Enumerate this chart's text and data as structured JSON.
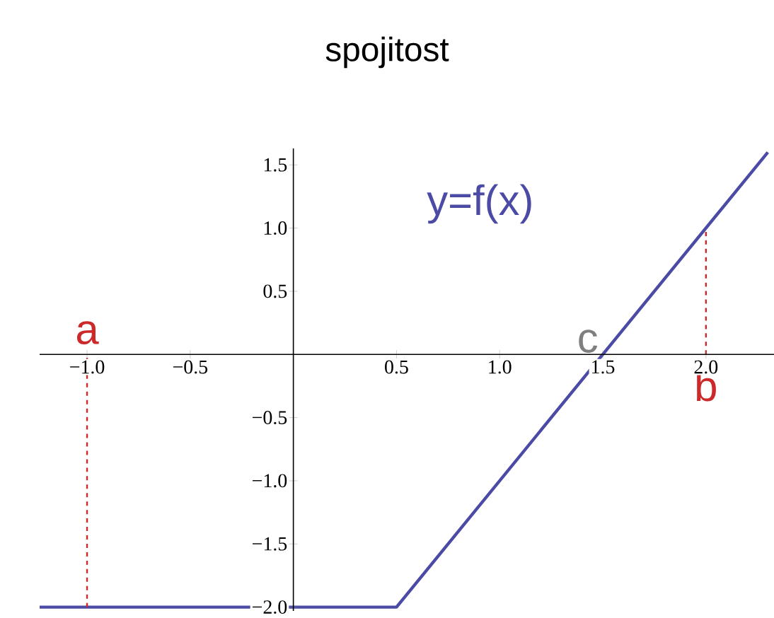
{
  "chart_data": {
    "type": "line",
    "title": "spojitost",
    "xlim": [
      -1.23,
      2.33
    ],
    "ylim": [
      -2.03,
      1.63
    ],
    "xticks": [
      {
        "value": -1,
        "label": "−1.0"
      },
      {
        "value": -0.5,
        "label": "−0.5"
      },
      {
        "value": 0.5,
        "label": "0.5"
      },
      {
        "value": 1,
        "label": "1.0"
      },
      {
        "value": 1.5,
        "label": "1.5"
      },
      {
        "value": 2,
        "label": "2.0"
      }
    ],
    "yticks": [
      {
        "value": 1.5,
        "label": "1.5"
      },
      {
        "value": 1,
        "label": "1.0"
      },
      {
        "value": 0.5,
        "label": "0.5"
      },
      {
        "value": -0.5,
        "label": "−0.5"
      },
      {
        "value": -1,
        "label": "−1.0"
      },
      {
        "value": -1.5,
        "label": "−1.5"
      },
      {
        "value": -2,
        "label": "−2.0"
      }
    ],
    "series": [
      {
        "name": "y=f(x)",
        "color": "#4b4ba6",
        "x": [
          -1.23,
          0.5,
          2.3
        ],
        "values": [
          -2,
          -2,
          1.6
        ]
      },
      {
        "color": "#cc2a2a",
        "line_style": "dashed",
        "x": [
          -1,
          -1
        ],
        "values": [
          -2,
          0
        ]
      },
      {
        "color": "#cc2a2a",
        "line_style": "dashed",
        "x": [
          2,
          2
        ],
        "values": [
          0,
          1
        ]
      }
    ],
    "annotations": [
      {
        "text": "a",
        "x": -1,
        "y": 0
      },
      {
        "text": "c",
        "x": 1.5,
        "y": 0
      },
      {
        "text": "b",
        "x": 2,
        "y": 0
      }
    ]
  }
}
